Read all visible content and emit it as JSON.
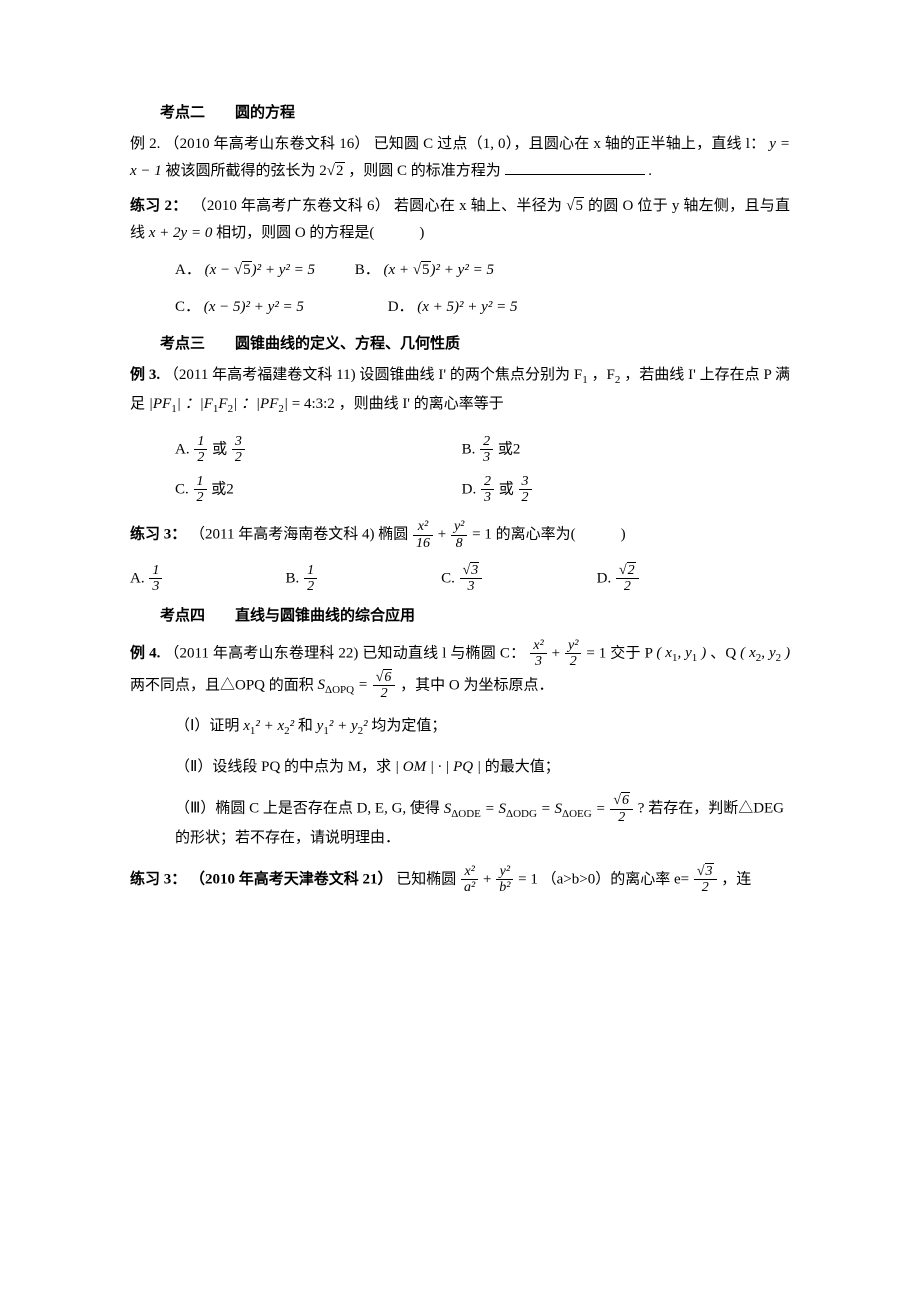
{
  "kp2": {
    "title": "考点二　　圆的方程",
    "ex2_label": "例 2.",
    "ex2_src": "（2010 年高考山东卷文科 16）",
    "ex2_body_a": " 已知圆 C 过点（1, 0），且圆心在 x 轴的正半轴上，直线 l：",
    "ex2_eq": "y = x − 1",
    "ex2_body_b": "被该圆所截得的弦长为 ",
    "ex2_body_c": "，则圆 C 的标准方程为",
    "ex2_blank_end": "."
  },
  "pr2": {
    "label": "练习 2：",
    "src": "（2010 年高考广东卷文科 6）",
    "body_a": "若圆心在 x 轴上、半径为 ",
    "body_b": " 的圆 O 位于 y 轴左侧，且与直线 ",
    "eq": "x + 2y = 0",
    "body_c": " 相切，则圆 O 的方程是(　　　)",
    "opt_a_label": "A．",
    "opt_b_label": "B．",
    "opt_c_label": "C．",
    "opt_d_label": "D．",
    "opt_a_eq_pre": "(x − ",
    "opt_a_eq_post": ")² + y² = 5",
    "opt_b_eq_pre": "(x + ",
    "opt_b_eq_post": ")² + y² = 5",
    "opt_c_eq": "(x − 5)² + y² = 5",
    "opt_d_eq": "(x + 5)² + y² = 5"
  },
  "kp3": {
    "title": "考点三　　圆锥曲线的定义、方程、几何性质",
    "ex3_label": "例 3.",
    "ex3_src": "（2011 年高考福建卷文科 11)",
    "ex3_body_a": "设圆锥曲线 I' 的两个焦点分别为 F",
    "ex3_body_b": "，F",
    "ex3_body_c": "，若曲线 I' 上存在点 P 满足 ",
    "ex3_ratio": "= 4:3:2",
    "ex3_body_d": "，则曲线 I' 的离心率等于",
    "opt_a_label": "A. ",
    "opt_b_label": "B. ",
    "opt_c_label": "C. ",
    "opt_d_label": "D. ",
    "or": "或",
    "two": "2"
  },
  "pr3a": {
    "label": "练习 3：",
    "src": "（2011 年高考海南卷文科 4)",
    "body_a": "椭圆 ",
    "body_b": " 的离心率为(　　　)",
    "opt_a_label": "A. ",
    "opt_b_label": "B. ",
    "opt_c_label": "C. ",
    "opt_d_label": "D. "
  },
  "kp4": {
    "title": "考点四　　直线与圆锥曲线的综合应用",
    "ex4_label": "例 4.",
    "ex4_src": "（2011 年高考山东卷理科 22)",
    "ex4_body_a": "已知动直线 l 与椭圆 C：",
    "ex4_body_b": " 交于 P",
    "ex4_body_c": "、Q",
    "ex4_body_d": "两不同点，且△OPQ 的面积 ",
    "ex4_body_e": "，其中 O 为坐标原点．",
    "sub1_label": "（Ⅰ）证明 ",
    "sub1_and": " 和 ",
    "sub1_end": " 均为定值；",
    "sub2_label": "（Ⅱ）设线段 PQ 的中点为 M，求 ",
    "sub2_mid": " | OM | · | PQ | ",
    "sub2_end": "的最大值；",
    "sub3_a": "（Ⅲ）椭圆 C 上是否存在点 D, E, G, 使得 ",
    "sub3_b": " ? 若存在，判断△DEG 的形状；若不存在，请说明理由．"
  },
  "pr3b": {
    "label": "练习 3：",
    "src": "（2010 年高考天津卷文科 21）",
    "body_a": "已知椭圆 ",
    "body_b": "（a>b>0）的离心率 e=",
    "body_c": "，连"
  },
  "sym": {
    "sqrt": "√",
    "eq1": "= 1",
    "plus": " + "
  }
}
